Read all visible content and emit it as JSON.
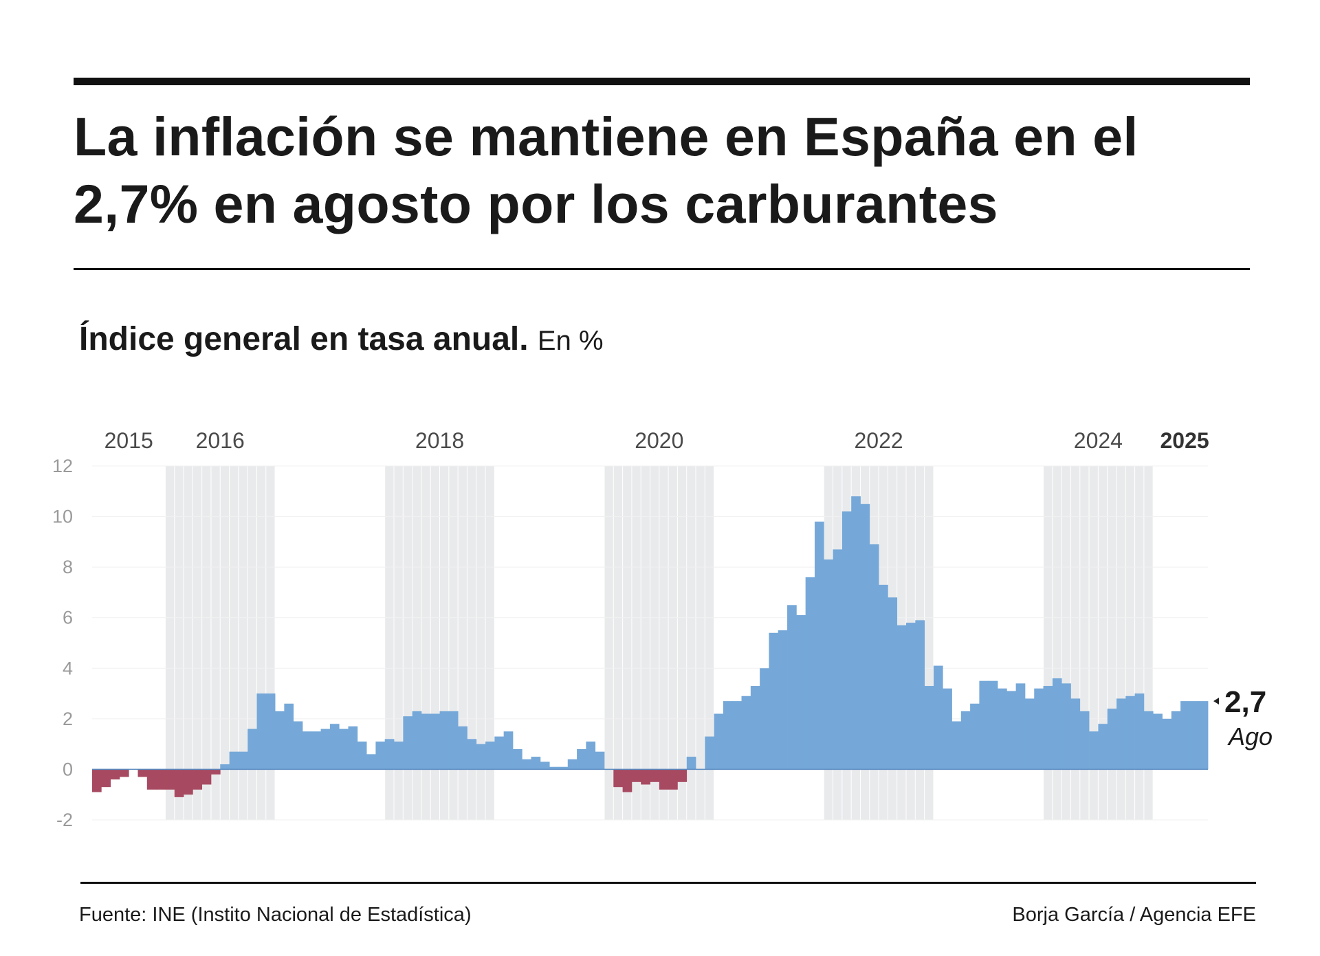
{
  "header": {
    "title": "La inflación se mantiene en España en el 2,7% en agosto por los carburantes",
    "subtitle_bold": "Índice general en tasa anual.",
    "subtitle_unit": "En %"
  },
  "chart_data": {
    "type": "bar",
    "title": "Índice general en tasa anual.",
    "ylabel": "En %",
    "ylim": [
      -2,
      12
    ],
    "yticks": [
      "12",
      "10",
      "8",
      "6",
      "4",
      "2",
      "0",
      "-2"
    ],
    "start": {
      "year": 2015,
      "month": 5
    },
    "year_labels": [
      {
        "label": "2015",
        "bold": false
      },
      {
        "label": "2016",
        "bold": false
      },
      {
        "label": "2018",
        "bold": false
      },
      {
        "label": "2020",
        "bold": false
      },
      {
        "label": "2022",
        "bold": false
      },
      {
        "label": "2024",
        "bold": false
      },
      {
        "label": "2025",
        "bold": true
      }
    ],
    "shaded_years": [
      2016,
      2018,
      2020,
      2022,
      2024
    ],
    "values": [
      -0.9,
      -0.7,
      -0.4,
      -0.3,
      0.0,
      -0.3,
      -0.8,
      -0.8,
      -0.8,
      -1.1,
      -1.0,
      -0.8,
      -0.6,
      -0.2,
      0.2,
      0.7,
      0.7,
      1.6,
      3.0,
      3.0,
      2.3,
      2.6,
      1.9,
      1.5,
      1.5,
      1.6,
      1.8,
      1.6,
      1.7,
      1.1,
      0.6,
      1.1,
      1.2,
      1.1,
      2.1,
      2.3,
      2.2,
      2.2,
      2.3,
      2.3,
      1.7,
      1.2,
      1.0,
      1.1,
      1.3,
      1.5,
      0.8,
      0.4,
      0.5,
      0.3,
      0.1,
      0.1,
      0.4,
      0.8,
      1.1,
      0.7,
      0.0,
      -0.7,
      -0.9,
      -0.5,
      -0.6,
      -0.5,
      -0.8,
      -0.8,
      -0.5,
      0.5,
      0.0,
      1.3,
      2.2,
      2.7,
      2.7,
      2.9,
      3.3,
      4.0,
      5.4,
      5.5,
      6.5,
      6.1,
      7.6,
      9.8,
      8.3,
      8.7,
      10.2,
      10.8,
      10.5,
      8.9,
      7.3,
      6.8,
      5.7,
      5.8,
      5.9,
      3.3,
      4.1,
      3.2,
      1.9,
      2.3,
      2.6,
      3.5,
      3.5,
      3.2,
      3.1,
      3.4,
      2.8,
      3.2,
      3.3,
      3.6,
      3.4,
      2.8,
      2.3,
      1.5,
      1.8,
      2.4,
      2.8,
      2.9,
      3.0,
      2.3,
      2.2,
      2.0,
      2.3,
      2.7,
      2.7,
      2.7
    ],
    "positive_color": "#75a8d8",
    "negative_color": "#a74a61",
    "shade_color": "#e9eaec",
    "last_value_label": "2,7",
    "last_month_label": "Ago"
  },
  "footer": {
    "source": "Fuente: INE (Instito Nacional de Estadística)",
    "credit": "Borja García / Agencia EFE"
  }
}
